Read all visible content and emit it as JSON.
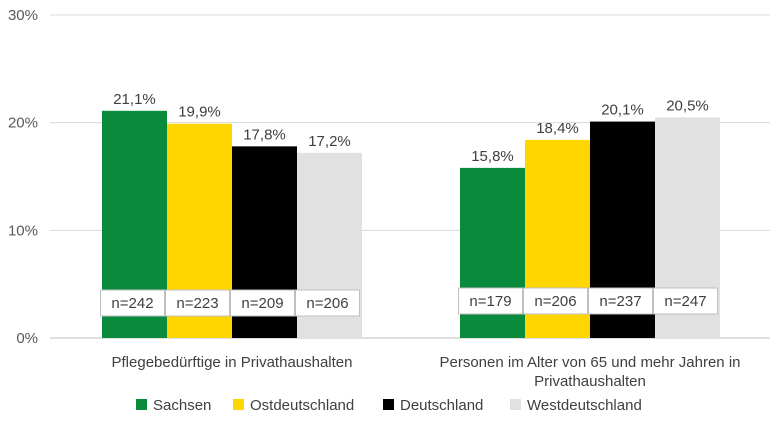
{
  "chart_data": {
    "type": "bar",
    "categories": [
      "Pflegebedürftige in Privathaushalten",
      "Personen im Alter von 65 und mehr Jahren in Privathaushalten"
    ],
    "category_lines": [
      [
        "Pflegebedürftige in Privathaushalten"
      ],
      [
        "Personen im Alter von 65 und mehr Jahren in",
        "Privathaushalten"
      ]
    ],
    "series": [
      {
        "name": "Sachsen",
        "color": "#0a8a3c",
        "values": [
          21.1,
          15.8
        ],
        "labels": [
          "21,1%",
          "15,8%"
        ],
        "n": [
          "n=242",
          "n=179"
        ]
      },
      {
        "name": "Ostdeutschland",
        "color": "#ffd600",
        "values": [
          19.9,
          18.4
        ],
        "labels": [
          "19,9%",
          "18,4%"
        ],
        "n": [
          "n=223",
          "n=206"
        ]
      },
      {
        "name": "Deutschland",
        "color": "#000000",
        "values": [
          17.8,
          20.1
        ],
        "labels": [
          "17,8%",
          "20,1%"
        ],
        "n": [
          "n=209",
          "n=237"
        ]
      },
      {
        "name": "Westdeutschland",
        "color": "#e1e1e1",
        "values": [
          17.2,
          20.5
        ],
        "labels": [
          "17,2%",
          "20,5%"
        ],
        "n": [
          "n=206",
          "n=247"
        ]
      }
    ],
    "ylim": [
      0,
      30
    ],
    "yticks": [
      0,
      10,
      20,
      30
    ],
    "ytick_labels": [
      "0%",
      "10%",
      "20%",
      "30%"
    ],
    "grid": true,
    "legend_position": "bottom"
  }
}
